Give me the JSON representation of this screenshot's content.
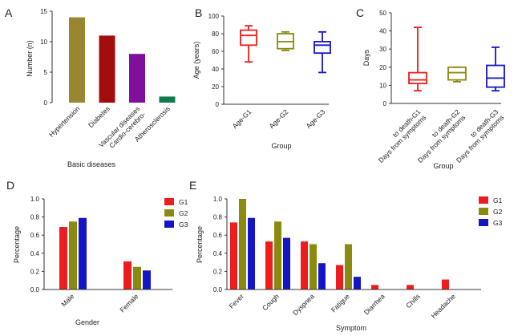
{
  "colors": {
    "red": "#ee1c1c",
    "olive": "#8a8b0e",
    "blue": "#1515c8",
    "bar_olive": "#9a8530",
    "bar_darkred": "#a30d0d",
    "bar_purple": "#800f9e",
    "bar_green": "#117a4d",
    "axis": "#333333"
  },
  "chart_data": [
    {
      "panel": "A",
      "type": "bar",
      "ylabel": "Number (n)",
      "xlabel": "Basic diseases",
      "ylim": [
        0,
        15
      ],
      "yticks": [
        "0",
        "5",
        "10",
        "15"
      ],
      "categories": [
        "Hypertension",
        "Diabetes",
        "Cardio-cerebro-Vascular diseases",
        "Atherosclerosis"
      ],
      "category_lines": [
        [
          "Hypertension"
        ],
        [
          "Diabetes"
        ],
        [
          "Cardio-cerebro-",
          "Vascular diseases"
        ],
        [
          "Atherosclerosis"
        ]
      ],
      "values": [
        14,
        11,
        8,
        1
      ],
      "bar_colors": [
        "#9a8530",
        "#a30d0d",
        "#800f9e",
        "#117a4d"
      ]
    },
    {
      "panel": "B",
      "type": "box",
      "ylabel": "Age (years)",
      "xlabel": "Group",
      "ylim": [
        0,
        100
      ],
      "yticks": [
        "0",
        "20",
        "40",
        "60",
        "80",
        "100"
      ],
      "categories": [
        "Age-G1",
        "Age-G2",
        "Age-G3"
      ],
      "boxes": [
        {
          "min": 48,
          "q1": 67,
          "median": 78,
          "q3": 84,
          "max": 89,
          "color": "#ee1c1c"
        },
        {
          "min": 61,
          "q1": 63,
          "median": 71,
          "q3": 80,
          "max": 82,
          "color": "#8a8b0e"
        },
        {
          "min": 36,
          "q1": 58,
          "median": 67,
          "q3": 71,
          "max": 82,
          "color": "#1515c8"
        }
      ]
    },
    {
      "panel": "C",
      "type": "box",
      "ylabel": "Days",
      "xlabel": "Group",
      "ylim": [
        0,
        50
      ],
      "yticks": [
        "0",
        "10",
        "20",
        "30",
        "40",
        "50"
      ],
      "categories": [
        "Days from symptoms to death-G1",
        "Days from symptoms to death-G2",
        "Days from symptoms to death-G3"
      ],
      "category_lines": [
        [
          "Days from symptoms",
          "to death-G1"
        ],
        [
          "Days from symptoms",
          "to death-G2"
        ],
        [
          "Days from symptoms",
          "to death-G3"
        ]
      ],
      "boxes": [
        {
          "min": 7,
          "q1": 11,
          "median": 13,
          "q3": 17,
          "max": 42,
          "color": "#ee1c1c"
        },
        {
          "min": 12,
          "q1": 13,
          "median": 17,
          "q3": 20,
          "max": 20,
          "color": "#8a8b0e"
        },
        {
          "min": 7,
          "q1": 9,
          "median": 14,
          "q3": 21,
          "max": 31,
          "color": "#1515c8"
        }
      ]
    },
    {
      "panel": "D",
      "type": "bar",
      "ylabel": "Percentage",
      "xlabel": "Gender",
      "ylim": [
        0,
        1.0
      ],
      "yticks": [
        "0.0",
        "0.2",
        "0.4",
        "0.6",
        "0.8",
        "1.0"
      ],
      "categories": [
        "Male",
        "Female"
      ],
      "series": [
        {
          "name": "G1",
          "values": [
            0.69,
            0.31
          ],
          "color": "#ee1c1c"
        },
        {
          "name": "G2",
          "values": [
            0.75,
            0.25
          ],
          "color": "#8a8b0e"
        },
        {
          "name": "G3",
          "values": [
            0.79,
            0.21
          ],
          "color": "#1515c8"
        }
      ],
      "legend": "top-right"
    },
    {
      "panel": "E",
      "type": "bar",
      "ylabel": "Percentage",
      "xlabel": "Symptom",
      "ylim": [
        0,
        1.0
      ],
      "yticks": [
        "0.0",
        "0.2",
        "0.4",
        "0.6",
        "0.8",
        "1.0"
      ],
      "categories": [
        "Fever",
        "Cough",
        "Dyspnea",
        "Fatigue",
        "Diarrhea",
        "Chills",
        "Headache"
      ],
      "series": [
        {
          "name": "G1",
          "values": [
            0.74,
            0.53,
            0.53,
            0.27,
            0.05,
            0.05,
            0.11
          ],
          "color": "#ee1c1c"
        },
        {
          "name": "G2",
          "values": [
            1.0,
            0.75,
            0.5,
            0.5,
            0,
            0,
            0
          ],
          "color": "#8a8b0e"
        },
        {
          "name": "G3",
          "values": [
            0.79,
            0.57,
            0.29,
            0.14,
            0,
            0,
            0
          ],
          "color": "#1515c8"
        }
      ],
      "legend": "top-right"
    }
  ]
}
